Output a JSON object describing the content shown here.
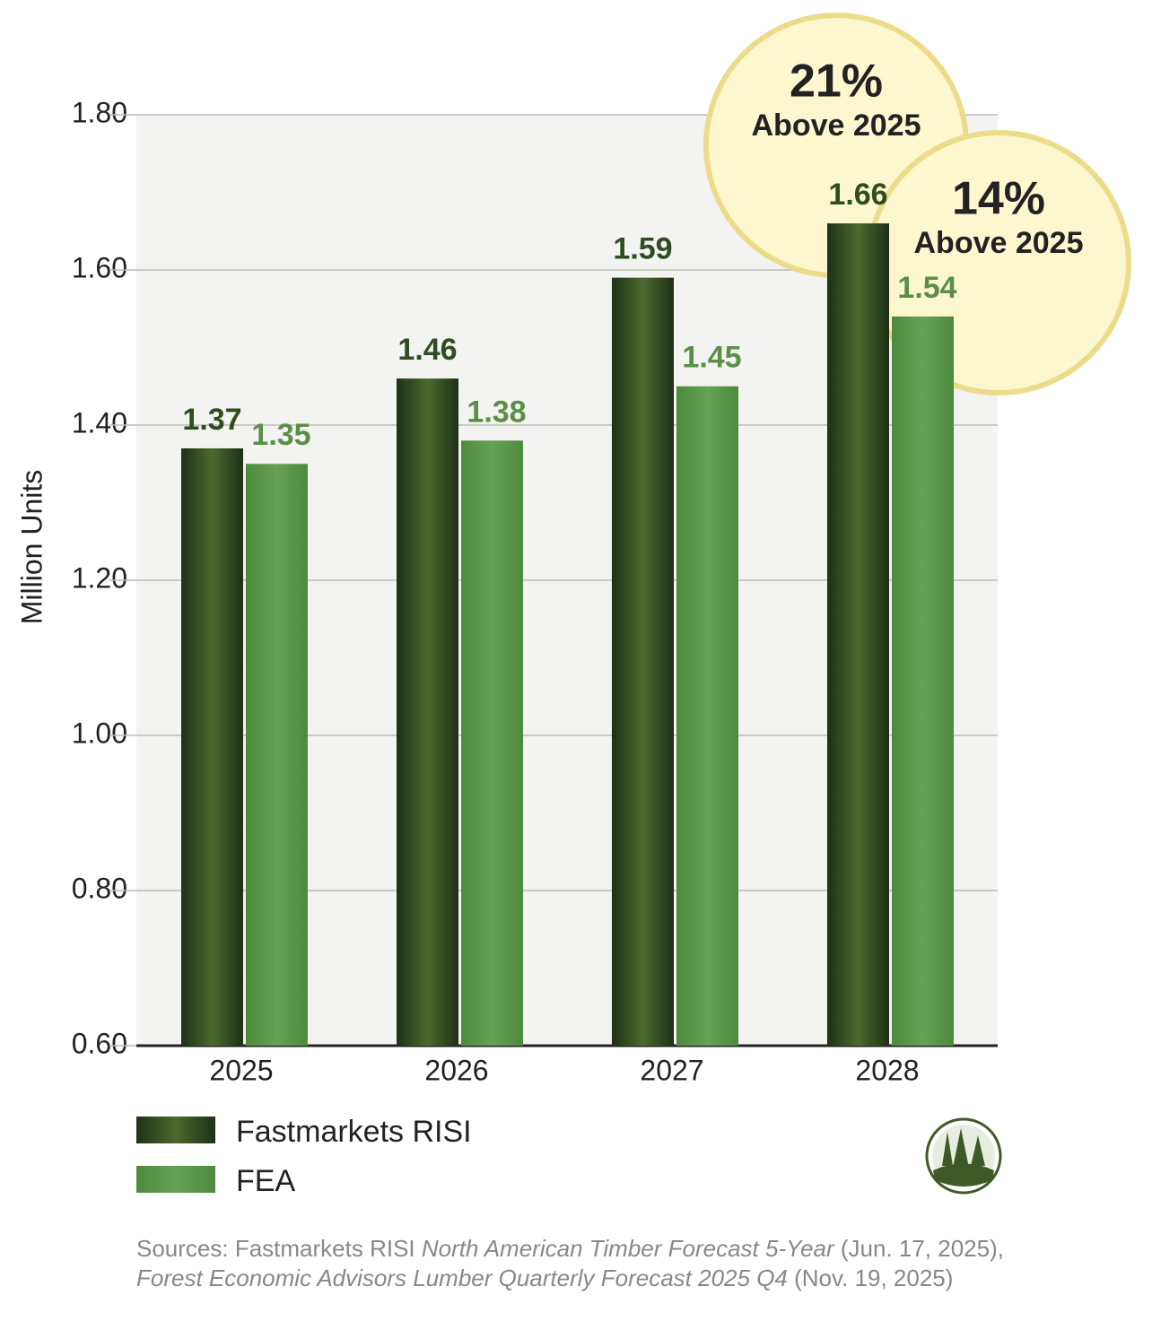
{
  "chart_data": {
    "type": "bar",
    "y_label": "Million Units",
    "categories": [
      "2025",
      "2026",
      "2027",
      "2028"
    ],
    "series": [
      {
        "name": "Fastmarkets RISI",
        "color": "#4a6a2c",
        "values": [
          1.37,
          1.46,
          1.59,
          1.66
        ]
      },
      {
        "name": "FEA",
        "color": "#66a055",
        "values": [
          1.35,
          1.38,
          1.45,
          1.54
        ]
      }
    ],
    "ylim": [
      0.6,
      1.8
    ],
    "yticks": [
      {
        "value": 0.6,
        "label": "0.60"
      },
      {
        "value": 0.8,
        "label": "0.80"
      },
      {
        "value": 1.0,
        "label": "1.00"
      },
      {
        "value": 1.2,
        "label": "1.20"
      },
      {
        "value": 1.4,
        "label": "1.40"
      },
      {
        "value": 1.6,
        "label": "1.60"
      },
      {
        "value": 1.8,
        "label": "1.80"
      }
    ],
    "grid": true,
    "annotations": [
      {
        "headline": "21%",
        "text": "Above 2025"
      },
      {
        "headline": "14%",
        "text": "Above 2025"
      }
    ],
    "source": [
      "Sources: Fastmarkets RISI ",
      "North American Timber Forecast 5-Year",
      " (Jun. 17, 2025),",
      "Forest Economic Advisors Lumber Quarterly Forecast 2025 Q4",
      " (Nov. 19, 2025)"
    ]
  }
}
